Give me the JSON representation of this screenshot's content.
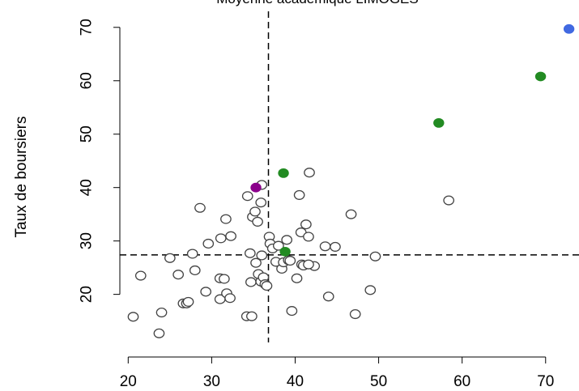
{
  "chart_data": {
    "type": "scatter",
    "title": "Moyenne académique LIMOGES",
    "xlabel": "",
    "ylabel": "Taux de boursiers",
    "xlim": [
      19,
      74
    ],
    "ylim": [
      11,
      73
    ],
    "x_ticks": [
      20,
      30,
      40,
      50,
      60,
      70
    ],
    "x_tick_labels": [
      "20",
      "30",
      "40",
      "50",
      "60",
      "70"
    ],
    "y_ticks": [
      20,
      30,
      40,
      50,
      60,
      70
    ],
    "y_tick_labels": [
      "20",
      "30",
      "40",
      "50",
      "60",
      "70"
    ],
    "grid": false,
    "legend": "none",
    "reference_lines": {
      "vertical_x": 36.8,
      "horizontal_y": 27.4,
      "style": "dashed"
    },
    "series": [
      {
        "color": "#ffffff",
        "stroke": "#444444",
        "marker": "open-circle",
        "points": [
          [
            20.6,
            15.8
          ],
          [
            21.5,
            23.5
          ],
          [
            23.7,
            12.7
          ],
          [
            24.0,
            16.6
          ],
          [
            25.0,
            26.8
          ],
          [
            26.0,
            23.7
          ],
          [
            26.6,
            18.3
          ],
          [
            27.0,
            18.3
          ],
          [
            27.2,
            18.6
          ],
          [
            27.7,
            27.6
          ],
          [
            28.0,
            24.5
          ],
          [
            28.6,
            36.2
          ],
          [
            29.3,
            20.5
          ],
          [
            29.6,
            29.5
          ],
          [
            31.0,
            23.0
          ],
          [
            31.0,
            19.1
          ],
          [
            31.1,
            30.5
          ],
          [
            31.5,
            22.9
          ],
          [
            31.8,
            20.2
          ],
          [
            32.2,
            19.3
          ],
          [
            32.3,
            30.9
          ],
          [
            31.7,
            34.1
          ],
          [
            34.2,
            15.9
          ],
          [
            34.3,
            38.4
          ],
          [
            34.6,
            27.7
          ],
          [
            34.7,
            22.3
          ],
          [
            34.8,
            15.9
          ],
          [
            34.9,
            34.5
          ],
          [
            35.2,
            35.5
          ],
          [
            35.3,
            25.9
          ],
          [
            35.5,
            33.6
          ],
          [
            35.6,
            23.8
          ],
          [
            35.9,
            22.4
          ],
          [
            36.0,
            27.3
          ],
          [
            36.2,
            23.2
          ],
          [
            36.4,
            21.9
          ],
          [
            36.6,
            21.6
          ],
          [
            36.9,
            30.8
          ],
          [
            36.0,
            40.5
          ],
          [
            35.9,
            37.2
          ],
          [
            37.0,
            29.5
          ],
          [
            37.3,
            28.6
          ],
          [
            37.7,
            26.1
          ],
          [
            38.0,
            29.1
          ],
          [
            38.4,
            24.8
          ],
          [
            38.6,
            26.0
          ],
          [
            39.0,
            30.2
          ],
          [
            39.2,
            26.4
          ],
          [
            39.6,
            16.9
          ],
          [
            40.2,
            23.0
          ],
          [
            40.5,
            38.6
          ],
          [
            40.7,
            31.6
          ],
          [
            40.8,
            25.6
          ],
          [
            41.0,
            25.4
          ],
          [
            41.3,
            33.1
          ],
          [
            41.6,
            30.8
          ],
          [
            41.7,
            42.8
          ],
          [
            42.3,
            25.3
          ],
          [
            43.6,
            29.0
          ],
          [
            44.0,
            19.6
          ],
          [
            44.8,
            28.9
          ],
          [
            46.7,
            35.0
          ],
          [
            47.2,
            16.3
          ],
          [
            49.0,
            20.8
          ],
          [
            49.6,
            27.1
          ],
          [
            58.4,
            37.6
          ],
          [
            39.4,
            26.3
          ],
          [
            41.6,
            25.6
          ]
        ]
      },
      {
        "color": "#228b22",
        "marker": "filled-circle",
        "points": [
          [
            38.6,
            42.7
          ],
          [
            38.8,
            28.0
          ],
          [
            57.2,
            52.1
          ],
          [
            69.4,
            60.8
          ]
        ]
      },
      {
        "color": "#8b008b",
        "marker": "filled-circle",
        "points": [
          [
            35.3,
            40.0
          ]
        ]
      },
      {
        "color": "#4169e1",
        "marker": "filled-circle",
        "points": [
          [
            72.8,
            69.7
          ]
        ]
      }
    ]
  }
}
